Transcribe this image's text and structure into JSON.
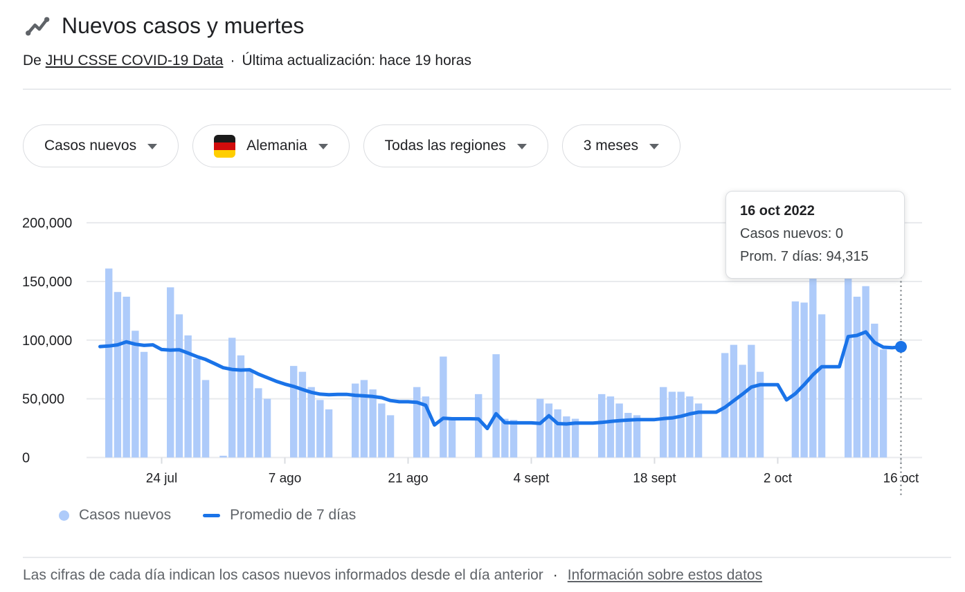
{
  "header": {
    "title": "Nuevos casos y muertes",
    "source_prefix": "De",
    "source_link_label": "JHU CSSE COVID-19 Data",
    "dot_separator": "·",
    "last_updated": "Última actualización: hace 19 horas"
  },
  "filters": {
    "metric": {
      "label": "Casos nuevos"
    },
    "country": {
      "label": "Alemania",
      "flag": "germany"
    },
    "region": {
      "label": "Todas las regiones"
    },
    "period": {
      "label": "3 meses"
    }
  },
  "tooltip": {
    "title": "16 oct 2022",
    "cases_line": "Casos nuevos: 0",
    "avg_line": "Prom. 7 días: 94,315"
  },
  "legend": {
    "bars_label": "Casos nuevos",
    "line_label": "Promedio de 7 días"
  },
  "footer": {
    "note": "Las cifras de cada día indican los casos nuevos informados desde el día anterior",
    "dot_separator": "·",
    "link_label": "Información sobre estos datos"
  },
  "colors": {
    "bar_fill": "#aecbfa",
    "avg_line": "#1a73e8",
    "highlight_marker": "#1a73e8",
    "grid": "#e8eaed",
    "axis_text": "#202124",
    "tick": "#dadce0",
    "guide_dotted": "#80868b"
  },
  "chart_data": {
    "type": "bar",
    "title": "Nuevos casos y muertes — Alemania",
    "xlabel": "",
    "ylabel": "",
    "ylim": [
      0,
      200000
    ],
    "grid": "horizontal",
    "legend_position": "bottom",
    "y_ticks": [
      {
        "value": 0,
        "label": "0"
      },
      {
        "value": 50000,
        "label": "50,000"
      },
      {
        "value": 100000,
        "label": "100,000"
      },
      {
        "value": 150000,
        "label": "150,000"
      },
      {
        "value": 200000,
        "label": "200,000"
      }
    ],
    "x_ticks": [
      {
        "date": "2022-07-24",
        "label": "24 jul"
      },
      {
        "date": "2022-08-07",
        "label": "7 ago"
      },
      {
        "date": "2022-08-21",
        "label": "21 ago"
      },
      {
        "date": "2022-09-04",
        "label": "4 sept"
      },
      {
        "date": "2022-09-18",
        "label": "18 sept"
      },
      {
        "date": "2022-10-02",
        "label": "2 oct"
      },
      {
        "date": "2022-10-16",
        "label": "16 oct"
      }
    ],
    "highlight": {
      "date": "2022-10-16",
      "label": "16 oct 2022",
      "casos_nuevos": 0,
      "prom_7_dias": 94315
    },
    "dates": [
      "2022-07-16",
      "2022-07-17",
      "2022-07-18",
      "2022-07-19",
      "2022-07-20",
      "2022-07-21",
      "2022-07-22",
      "2022-07-23",
      "2022-07-24",
      "2022-07-25",
      "2022-07-26",
      "2022-07-27",
      "2022-07-28",
      "2022-07-29",
      "2022-07-30",
      "2022-07-31",
      "2022-08-01",
      "2022-08-02",
      "2022-08-03",
      "2022-08-04",
      "2022-08-05",
      "2022-08-06",
      "2022-08-07",
      "2022-08-08",
      "2022-08-09",
      "2022-08-10",
      "2022-08-11",
      "2022-08-12",
      "2022-08-13",
      "2022-08-14",
      "2022-08-15",
      "2022-08-16",
      "2022-08-17",
      "2022-08-18",
      "2022-08-19",
      "2022-08-20",
      "2022-08-21",
      "2022-08-22",
      "2022-08-23",
      "2022-08-24",
      "2022-08-25",
      "2022-08-26",
      "2022-08-27",
      "2022-08-28",
      "2022-08-29",
      "2022-08-30",
      "2022-08-31",
      "2022-09-01",
      "2022-09-02",
      "2022-09-03",
      "2022-09-04",
      "2022-09-05",
      "2022-09-06",
      "2022-09-07",
      "2022-09-08",
      "2022-09-09",
      "2022-09-10",
      "2022-09-11",
      "2022-09-12",
      "2022-09-13",
      "2022-09-14",
      "2022-09-15",
      "2022-09-16",
      "2022-09-17",
      "2022-09-18",
      "2022-09-19",
      "2022-09-20",
      "2022-09-21",
      "2022-09-22",
      "2022-09-23",
      "2022-09-24",
      "2022-09-25",
      "2022-09-26",
      "2022-09-27",
      "2022-09-28",
      "2022-09-29",
      "2022-09-30",
      "2022-10-01",
      "2022-10-02",
      "2022-10-03",
      "2022-10-04",
      "2022-10-05",
      "2022-10-06",
      "2022-10-07",
      "2022-10-08",
      "2022-10-09",
      "2022-10-10",
      "2022-10-11",
      "2022-10-12",
      "2022-10-13",
      "2022-10-14",
      "2022-10-15",
      "2022-10-16"
    ],
    "series": [
      {
        "name": "Casos nuevos",
        "type": "bar",
        "values": [
          0,
          0,
          161000,
          141000,
          137000,
          108000,
          90000,
          0,
          0,
          145000,
          122000,
          104000,
          84000,
          66000,
          0,
          1500,
          102000,
          87000,
          74000,
          59000,
          50000,
          0,
          0,
          78000,
          73000,
          60000,
          49000,
          41000,
          0,
          0,
          63000,
          66000,
          58000,
          46000,
          36000,
          0,
          0,
          60000,
          52000,
          0,
          86000,
          33000,
          0,
          0,
          54000,
          0,
          88000,
          33000,
          32000,
          0,
          0,
          50000,
          46000,
          41000,
          35000,
          33000,
          0,
          0,
          54000,
          52000,
          46000,
          38000,
          36000,
          0,
          0,
          60000,
          56000,
          56000,
          52000,
          46000,
          0,
          0,
          89000,
          96000,
          79000,
          96000,
          73000,
          0,
          0,
          0,
          133000,
          132000,
          156000,
          122000,
          0,
          0,
          158000,
          137000,
          146000,
          114000,
          92000,
          0,
          0
        ]
      },
      {
        "name": "Promedio de 7 días",
        "type": "line",
        "values": [
          null,
          94500,
          95000,
          96000,
          98500,
          96500,
          95500,
          96000,
          92000,
          91500,
          91800,
          89000,
          86000,
          83500,
          80000,
          76500,
          75000,
          74500,
          74800,
          71000,
          68000,
          65000,
          62500,
          60500,
          58000,
          55500,
          54000,
          53500,
          53800,
          53800,
          53000,
          52500,
          52000,
          51000,
          48500,
          47500,
          47500,
          47000,
          44500,
          27700,
          33500,
          33000,
          33000,
          33000,
          32800,
          24700,
          37300,
          29700,
          29500,
          29500,
          29500,
          29000,
          35600,
          28900,
          28600,
          29300,
          29300,
          29300,
          29900,
          30700,
          31400,
          31900,
          32300,
          32300,
          32300,
          33100,
          33700,
          35100,
          37100,
          38600,
          38600,
          38600,
          42700,
          48400,
          54000,
          60000,
          62000,
          62000,
          62000,
          49100,
          54400,
          62000,
          70400,
          77400,
          77400,
          77400,
          103000,
          104000,
          107000,
          98000,
          94000,
          93500,
          94315
        ]
      }
    ]
  }
}
